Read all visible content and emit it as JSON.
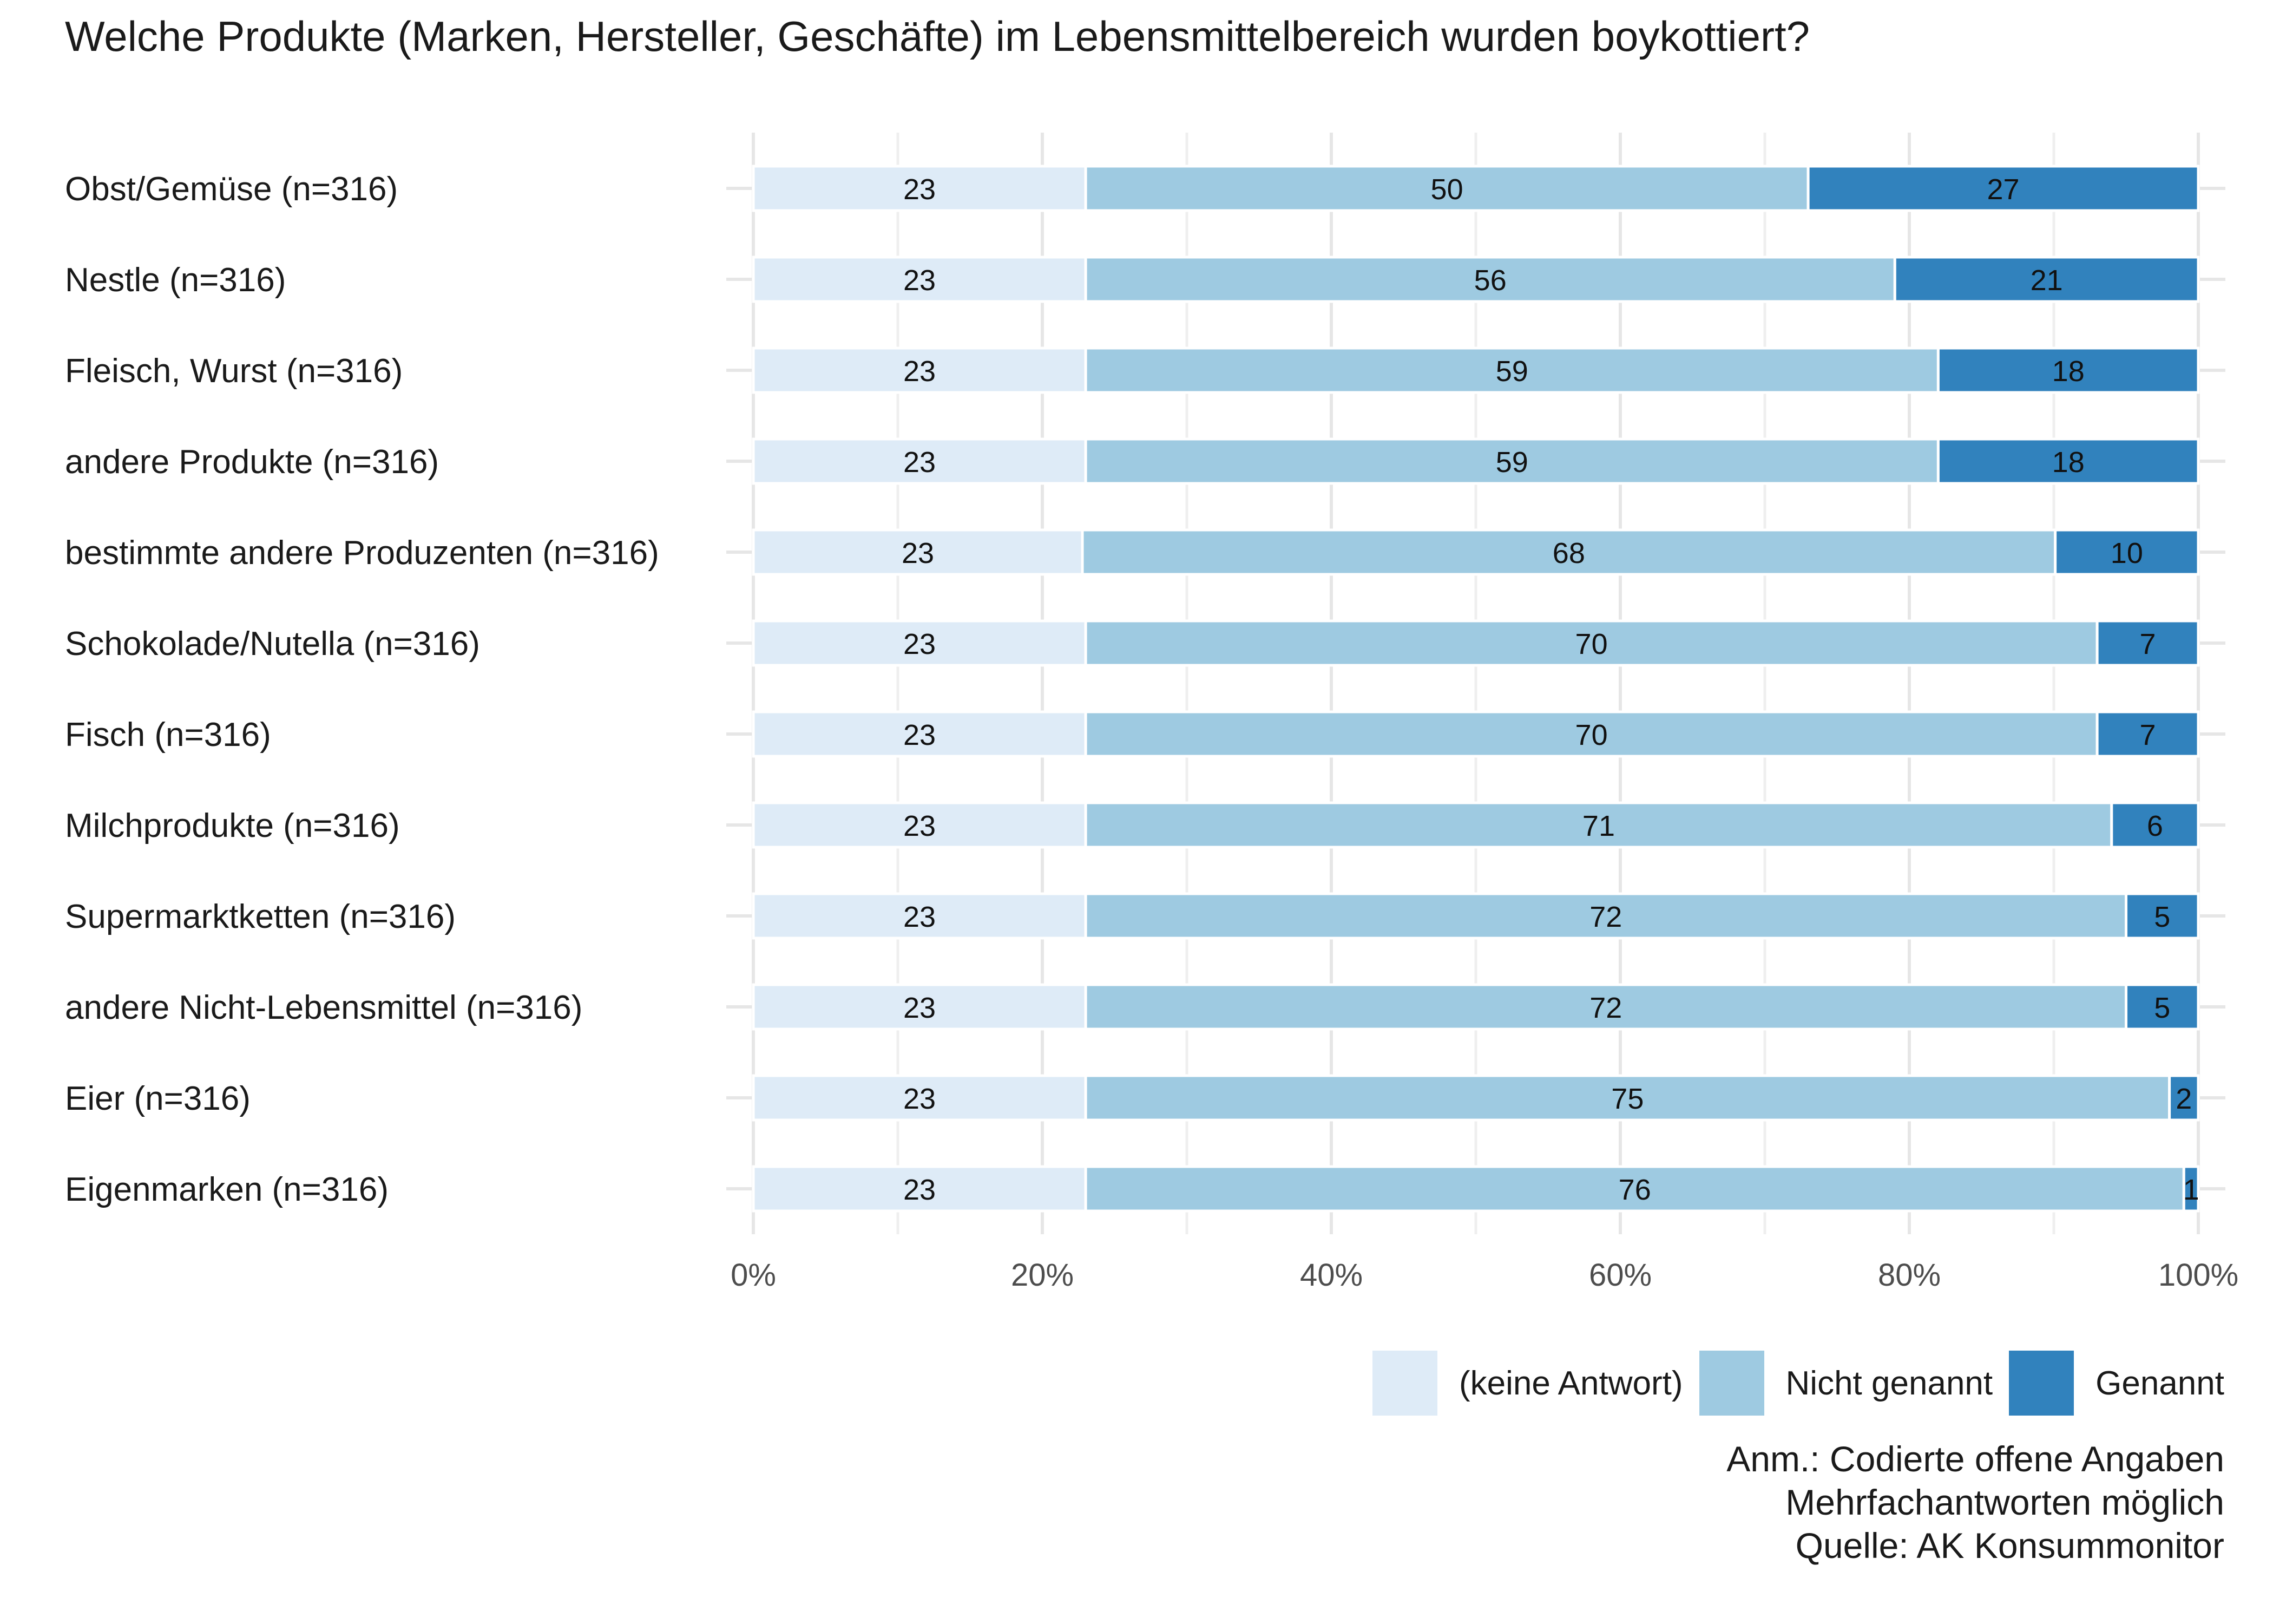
{
  "chart_data": {
    "type": "bar",
    "orientation": "horizontal",
    "stacked": true,
    "percent_scale": true,
    "title": "Welche Produkte (Marken, Hersteller, Geschäfte) im Lebensmittelbereich wurden boykottiert?",
    "categories": [
      "Obst/Gemüse (n=316)",
      "Nestle (n=316)",
      "Fleisch, Wurst (n=316)",
      "andere Produkte (n=316)",
      "bestimmte andere Produzenten (n=316)",
      "Schokolade/Nutella (n=316)",
      "Fisch (n=316)",
      "Milchprodukte (n=316)",
      "Supermarktketten (n=316)",
      "andere Nicht-Lebensmittel (n=316)",
      "Eier (n=316)",
      "Eigenmarken (n=316)"
    ],
    "series": [
      {
        "name": "(keine Antwort)",
        "color": "#deebf7",
        "values": [
          23,
          23,
          23,
          23,
          23,
          23,
          23,
          23,
          23,
          23,
          23,
          23
        ]
      },
      {
        "name": "Nicht genannt",
        "color": "#9ecae1",
        "values": [
          50,
          56,
          59,
          59,
          68,
          70,
          70,
          71,
          72,
          72,
          75,
          76
        ]
      },
      {
        "name": "Genannt",
        "color": "#3182bd",
        "values": [
          27,
          21,
          18,
          18,
          10,
          7,
          7,
          6,
          5,
          5,
          2,
          1
        ]
      }
    ],
    "xlim": [
      0,
      100
    ],
    "xticks": [
      "0%",
      "20%",
      "40%",
      "60%",
      "80%",
      "100%"
    ],
    "grid": true,
    "legend_position": "bottom-right"
  },
  "notes": [
    "Anm.: Codierte offene Angaben",
    "Mehrfachantworten möglich",
    "Quelle: AK Konsummonitor"
  ]
}
